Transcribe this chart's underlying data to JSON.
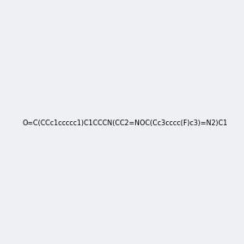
{
  "smiles": "O=C(CCc1ccccc1)C1CCCN(CC2=NOC(Cc3cccc(F)c3)=N2)C1",
  "image_size": 300,
  "background_color": "#eef0f3",
  "bond_color": "#1a1a1a",
  "atom_colors": {
    "N": "#0000ff",
    "O": "#ff0000",
    "F": "#ff00ff"
  }
}
